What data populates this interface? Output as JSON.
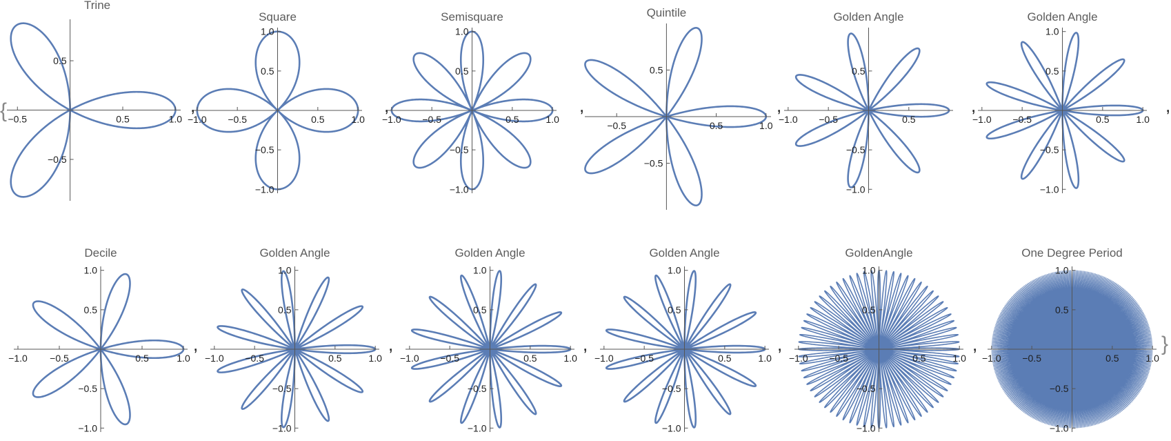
{
  "colors": {
    "curve": "#5B7DB5",
    "axis": "#555555",
    "title": "#5c5c5c"
  },
  "list_delimiters": {
    "open": "{",
    "close": "}",
    "separator": ","
  },
  "chart_data": [
    {
      "type": "line",
      "title": "Trine",
      "r_eq": "cos(3θ)",
      "k": 3,
      "xlim": [
        -0.6,
        1.05
      ],
      "ylim": [
        -0.92,
        0.92
      ],
      "xticks": [
        -0.5,
        0.5,
        1.0
      ],
      "xtick_labels": [
        "−0.5",
        "0.5",
        "1.0"
      ],
      "yticks": [
        -0.5,
        0.5
      ],
      "ytick_labels": [
        "−0.5",
        "0.5"
      ]
    },
    {
      "type": "line",
      "title": "Square",
      "r_eq": "cos(2θ)",
      "k": 2,
      "xlim": [
        -1.05,
        1.05
      ],
      "ylim": [
        -1.05,
        1.05
      ],
      "xticks": [
        -1.0,
        -0.5,
        0.5,
        1.0
      ],
      "xtick_labels": [
        "−1.0",
        "−0.5",
        "0.5",
        "1.0"
      ],
      "yticks": [
        -1.0,
        -0.5,
        0.5,
        1.0
      ],
      "ytick_labels": [
        "−1.0",
        "−0.5",
        "0.5",
        "1.0"
      ]
    },
    {
      "type": "line",
      "title": "Semisquare",
      "r_eq": "cos(4θ)",
      "k": 4,
      "xlim": [
        -1.05,
        1.05
      ],
      "ylim": [
        -1.05,
        1.05
      ],
      "xticks": [
        -1.0,
        -0.5,
        0.5,
        1.0
      ],
      "xtick_labels": [
        "−1.0",
        "−0.5",
        "0.5",
        "1.0"
      ],
      "yticks": [
        -1.0,
        -0.5,
        0.5,
        1.0
      ],
      "ytick_labels": [
        "−1.0",
        "−0.5",
        "0.5",
        "1.0"
      ]
    },
    {
      "type": "line",
      "title": "Quintile",
      "r_eq": "cos(5θ)",
      "k": 5,
      "xlim": [
        -0.82,
        1.05
      ],
      "ylim": [
        -1.0,
        1.0
      ],
      "xticks": [
        -0.5,
        0.5,
        1.0
      ],
      "xtick_labels": [
        "−0.5",
        "0.5",
        "1.0"
      ],
      "yticks": [
        -0.5,
        0.5
      ],
      "ytick_labels": [
        "−0.5",
        "0.5"
      ]
    },
    {
      "type": "line",
      "title": "Golden Angle",
      "r_eq": "cos(7θ)",
      "k": 7,
      "xlim": [
        -1.05,
        1.05
      ],
      "ylim": [
        -1.05,
        1.05
      ],
      "xticks": [
        -1.0,
        -0.5,
        0.5
      ],
      "xtick_labels": [
        "−1.0",
        "−0.5",
        "0.5"
      ],
      "yticks": [
        -1.0,
        -0.5,
        0.5
      ],
      "ytick_labels": [
        "−1.0",
        "−0.5",
        "0.5"
      ]
    },
    {
      "type": "line",
      "title": "Golden Angle",
      "r_eq": "cos(9θ)",
      "k": 9,
      "xlim": [
        -1.05,
        1.05
      ],
      "ylim": [
        -1.05,
        1.05
      ],
      "xticks": [
        -1.0,
        -0.5,
        0.5,
        1.0
      ],
      "xtick_labels": [
        "−1.0",
        "−0.5",
        "0.5",
        "1.0"
      ],
      "yticks": [
        -1.0,
        -0.5,
        0.5,
        1.0
      ],
      "ytick_labels": [
        "−1.0",
        "−0.5",
        "0.5",
        "1.0"
      ]
    },
    {
      "type": "line",
      "title": "Decile",
      "r_eq": "cos(5θ)",
      "k": 5,
      "xlim": [
        -1.05,
        1.05
      ],
      "ylim": [
        -1.05,
        1.05
      ],
      "xticks": [
        -1.0,
        -0.5,
        0.5,
        1.0
      ],
      "xtick_labels": [
        "−1.0",
        "−0.5",
        "0.5",
        "1.0"
      ],
      "yticks": [
        -1.0,
        -0.5,
        0.5,
        1.0
      ],
      "ytick_labels": [
        "−1.0",
        "−0.5",
        "0.5",
        "1.0"
      ]
    },
    {
      "type": "line",
      "title": "Golden Angle",
      "r_eq": "cos(11θ)",
      "k": 11,
      "xlim": [
        -1.05,
        1.05
      ],
      "ylim": [
        -1.05,
        1.05
      ],
      "xticks": [
        -1.0,
        -0.5,
        0.5,
        1.0
      ],
      "xtick_labels": [
        "−1.0",
        "−0.5",
        "0.5",
        "1.0"
      ],
      "yticks": [
        -1.0,
        -0.5,
        0.5,
        1.0
      ],
      "ytick_labels": [
        "−1.0",
        "−0.5",
        "0.5",
        "1.0"
      ]
    },
    {
      "type": "line",
      "title": "Golden Angle",
      "r_eq": "cos(13θ)",
      "k": 13,
      "xlim": [
        -1.05,
        1.05
      ],
      "ylim": [
        -1.05,
        1.05
      ],
      "xticks": [
        -1.0,
        -0.5,
        0.5,
        1.0
      ],
      "xtick_labels": [
        "−1.0",
        "−0.5",
        "0.5",
        "1.0"
      ],
      "yticks": [
        -1.0,
        -0.5,
        0.5,
        1.0
      ],
      "ytick_labels": [
        "−1.0",
        "−0.5",
        "0.5",
        "1.0"
      ]
    },
    {
      "type": "line",
      "title": "Golden Angle",
      "r_eq": "cos(13θ)",
      "k": 13,
      "xlim": [
        -1.05,
        1.05
      ],
      "ylim": [
        -1.05,
        1.05
      ],
      "xticks": [
        -1.0,
        -0.5,
        0.5,
        1.0
      ],
      "xtick_labels": [
        "−1.0",
        "−0.5",
        "0.5",
        "1.0"
      ],
      "yticks": [
        -1.0,
        -0.5,
        0.5,
        1.0
      ],
      "ytick_labels": [
        "−1.0",
        "−0.5",
        "0.5",
        "1.0"
      ]
    },
    {
      "type": "line",
      "title": "GoldenAngle",
      "r_eq": "cos(34θ)",
      "k": 34,
      "xlim": [
        -1.05,
        1.05
      ],
      "ylim": [
        -1.05,
        1.05
      ],
      "xticks": [
        -1.0,
        -0.5,
        0.5,
        1.0
      ],
      "xtick_labels": [
        "−1.0",
        "−0.5",
        "0.5",
        "1.0"
      ],
      "yticks": [
        -1.0,
        -0.5,
        0.5,
        1.0
      ],
      "ytick_labels": [
        "−1.0",
        "−0.5",
        "0.5",
        "1.0"
      ]
    },
    {
      "type": "line",
      "title": "One Degree Period",
      "r_eq": "cos(180θ)",
      "k": 180,
      "xlim": [
        -1.05,
        1.05
      ],
      "ylim": [
        -1.05,
        1.05
      ],
      "xticks": [
        -1.0,
        -0.5,
        0.5,
        1.0
      ],
      "xtick_labels": [
        "−1.0",
        "−0.5",
        "0.5",
        "1.0"
      ],
      "yticks": [
        -1.0,
        -0.5,
        0.5,
        1.0
      ],
      "ytick_labels": [
        "−1.0",
        "−0.5",
        "0.5",
        "1.0"
      ]
    }
  ]
}
